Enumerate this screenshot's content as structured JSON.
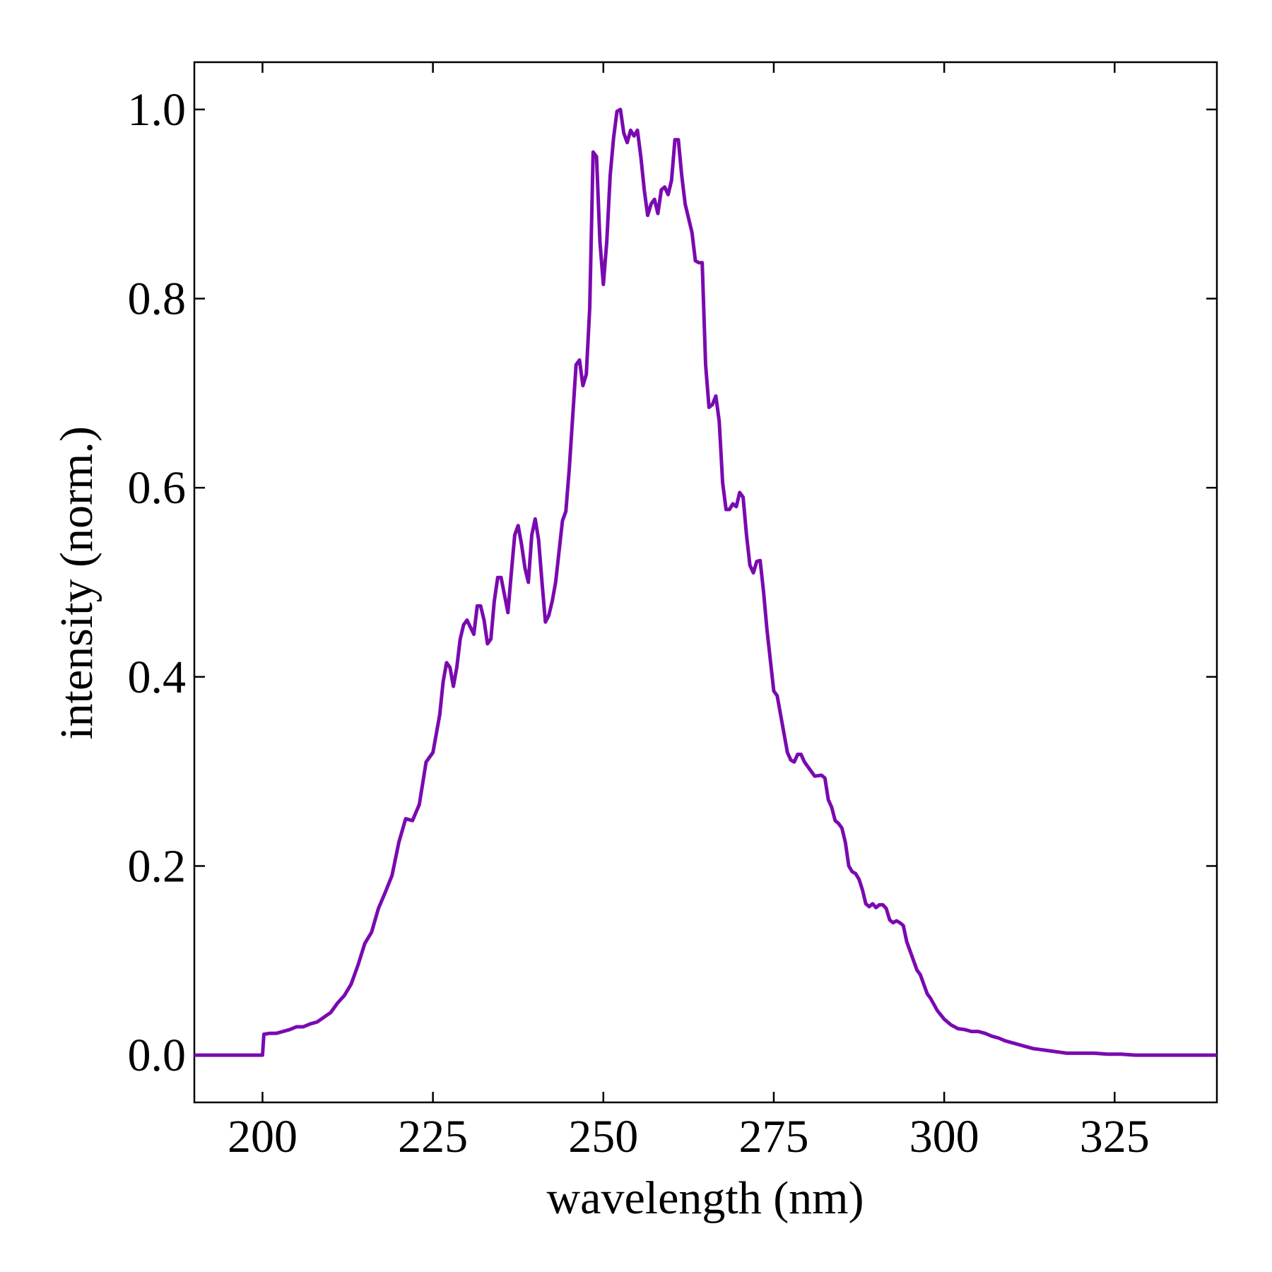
{
  "chart_data": {
    "type": "line",
    "xlabel": "wavelength (nm)",
    "ylabel": "intensity (norm.)",
    "color": "#7a0ab0",
    "xlim": [
      190,
      340
    ],
    "ylim": [
      -0.05,
      1.05
    ],
    "xticks": [
      200,
      225,
      250,
      275,
      300,
      325
    ],
    "yticks": [
      {
        "value": 0,
        "label": "0.0"
      },
      0.2,
      0.4,
      0.6,
      0.8,
      {
        "value": 1,
        "label": "1.0"
      }
    ],
    "x": [
      190,
      195,
      200,
      200.2,
      201,
      202,
      203,
      204,
      205,
      206,
      207,
      208,
      209,
      210,
      211,
      212,
      213,
      214,
      215,
      216,
      217,
      218,
      219,
      220,
      221,
      222,
      223,
      224,
      225,
      226,
      226.5,
      227,
      227.5,
      228,
      228.5,
      229,
      229.5,
      230,
      231,
      231.5,
      232,
      232.5,
      233,
      233.5,
      234,
      234.5,
      235,
      236,
      236.5,
      237,
      237.5,
      238,
      238.5,
      239,
      239.5,
      240,
      240.5,
      241,
      241.5,
      242,
      242.5,
      243,
      244,
      244.5,
      245,
      246,
      246.5,
      247,
      247.5,
      248,
      248.5,
      249,
      249.5,
      250,
      250.5,
      251,
      251.5,
      252,
      252.5,
      253,
      253.5,
      254,
      254.5,
      255,
      255.5,
      256,
      256.5,
      257,
      257.5,
      258,
      258.5,
      259,
      259.5,
      260,
      260.5,
      261,
      261.5,
      262,
      262.5,
      263,
      263.5,
      264,
      264.5,
      265,
      265.5,
      266,
      266.5,
      267,
      267.5,
      268,
      268.5,
      269,
      269.5,
      270,
      270.5,
      271,
      271.5,
      272,
      272.5,
      273,
      273.5,
      274,
      275,
      275.5,
      276,
      277,
      277.5,
      278,
      278.5,
      279,
      279.5,
      280,
      281,
      282,
      282.5,
      283,
      283.5,
      284,
      284.5,
      285,
      285.5,
      286,
      286.5,
      287,
      287.5,
      288,
      288.5,
      289,
      289.5,
      290,
      290.5,
      291,
      291.5,
      292,
      292.5,
      293,
      293.5,
      294,
      294.5,
      295,
      295.5,
      296,
      296.5,
      297,
      297.5,
      298,
      299,
      300,
      301,
      302,
      303,
      304,
      305,
      306,
      307,
      308,
      309,
      310,
      311,
      312,
      313,
      314,
      315,
      316,
      317,
      318,
      320,
      322,
      324,
      326,
      328,
      330,
      335,
      340
    ],
    "values": [
      0,
      0,
      0,
      0.022,
      0.023,
      0.023,
      0.025,
      0.027,
      0.03,
      0.03,
      0.033,
      0.035,
      0.04,
      0.045,
      0.055,
      0.063,
      0.075,
      0.095,
      0.118,
      0.13,
      0.155,
      0.172,
      0.19,
      0.225,
      0.25,
      0.248,
      0.265,
      0.31,
      0.32,
      0.36,
      0.395,
      0.415,
      0.41,
      0.39,
      0.41,
      0.44,
      0.455,
      0.46,
      0.445,
      0.475,
      0.475,
      0.46,
      0.435,
      0.44,
      0.48,
      0.505,
      0.505,
      0.468,
      0.51,
      0.55,
      0.56,
      0.54,
      0.515,
      0.5,
      0.55,
      0.567,
      0.545,
      0.5,
      0.458,
      0.465,
      0.48,
      0.5,
      0.565,
      0.575,
      0.62,
      0.73,
      0.735,
      0.708,
      0.72,
      0.79,
      0.955,
      0.95,
      0.86,
      0.815,
      0.86,
      0.93,
      0.97,
      0.998,
      1.0,
      0.975,
      0.965,
      0.978,
      0.972,
      0.978,
      0.95,
      0.915,
      0.888,
      0.9,
      0.905,
      0.89,
      0.915,
      0.918,
      0.91,
      0.925,
      0.968,
      0.968,
      0.93,
      0.9,
      0.885,
      0.87,
      0.84,
      0.838,
      0.838,
      0.73,
      0.685,
      0.688,
      0.697,
      0.67,
      0.605,
      0.577,
      0.577,
      0.583,
      0.58,
      0.595,
      0.59,
      0.55,
      0.518,
      0.51,
      0.522,
      0.523,
      0.49,
      0.45,
      0.385,
      0.38,
      0.36,
      0.32,
      0.312,
      0.31,
      0.318,
      0.318,
      0.31,
      0.305,
      0.295,
      0.296,
      0.293,
      0.27,
      0.262,
      0.248,
      0.245,
      0.24,
      0.225,
      0.2,
      0.194,
      0.192,
      0.186,
      0.175,
      0.16,
      0.157,
      0.16,
      0.156,
      0.159,
      0.159,
      0.155,
      0.143,
      0.14,
      0.142,
      0.14,
      0.137,
      0.12,
      0.11,
      0.1,
      0.09,
      0.085,
      0.075,
      0.065,
      0.06,
      0.047,
      0.038,
      0.032,
      0.028,
      0.027,
      0.025,
      0.025,
      0.023,
      0.02,
      0.018,
      0.015,
      0.013,
      0.011,
      0.009,
      0.007,
      0.006,
      0.005,
      0.004,
      0.003,
      0.002,
      0.002,
      0.002,
      0.001,
      0.001,
      0,
      0,
      0,
      0
    ]
  }
}
